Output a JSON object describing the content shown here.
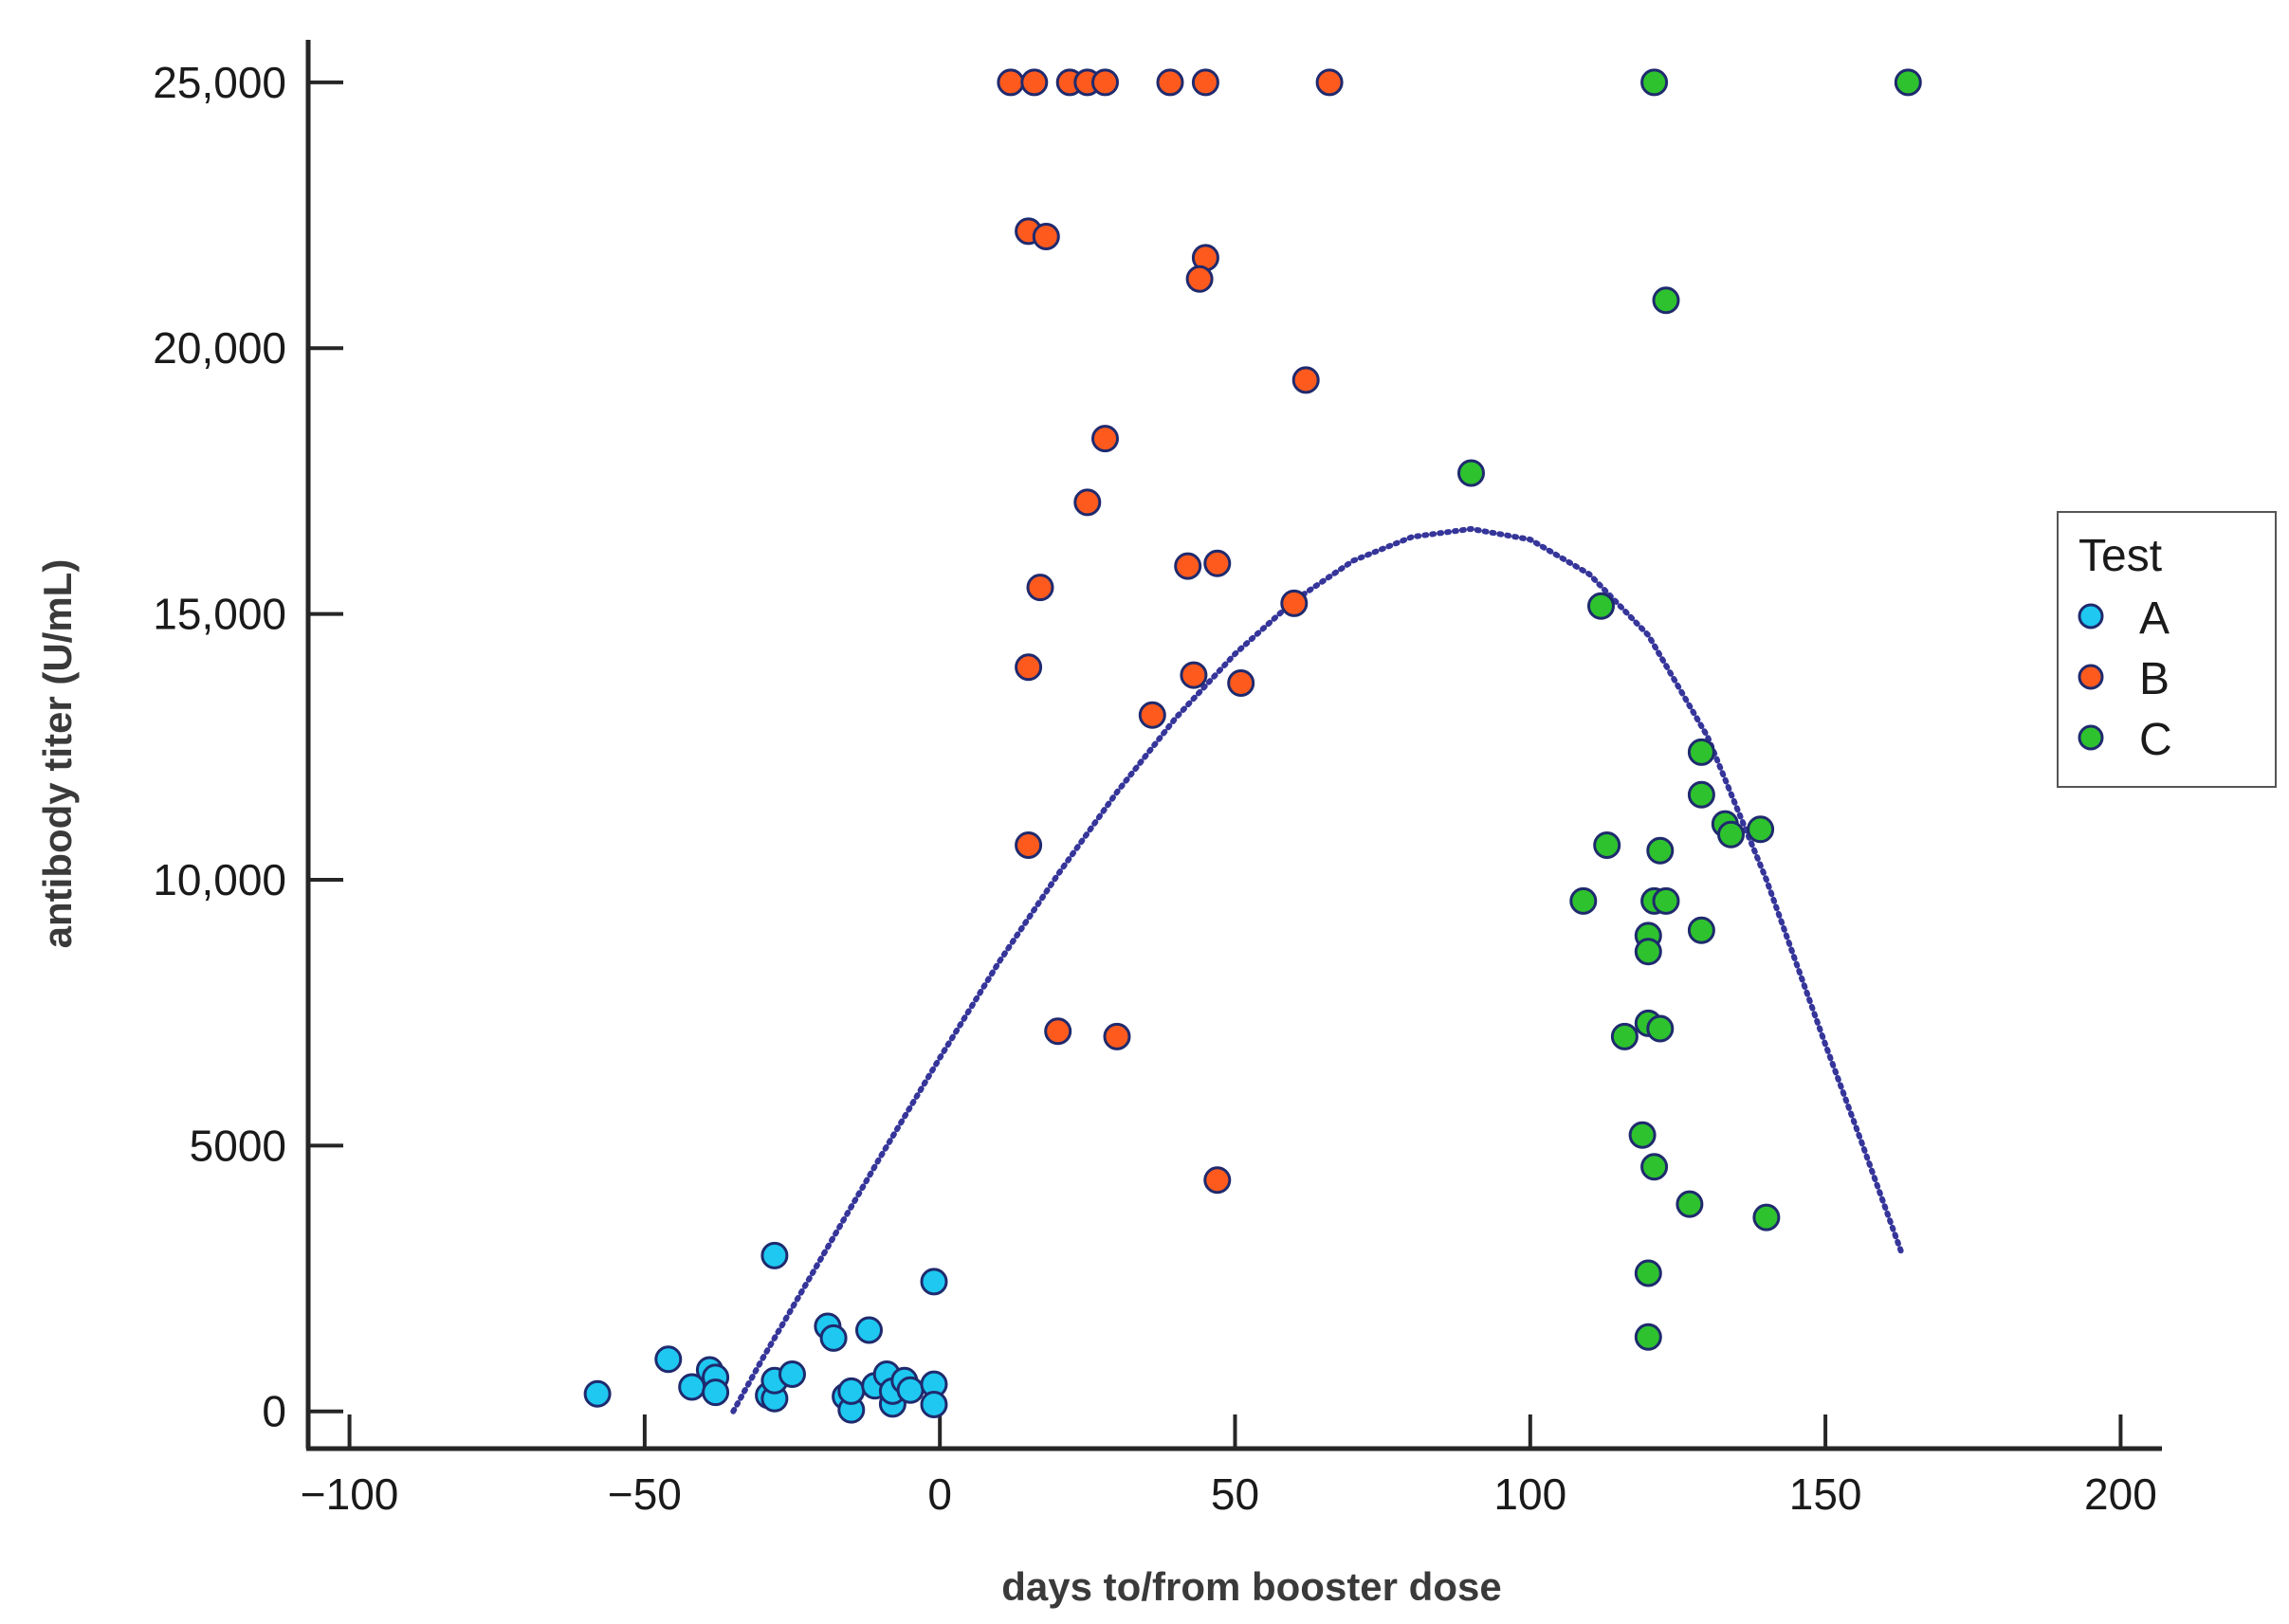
{
  "chart_data": {
    "type": "scatter",
    "title": "",
    "xlabel": "days to/from booster dose",
    "ylabel": "antibody titer (U/mL)",
    "xlim": [
      -107,
      207
    ],
    "ylim": [
      -700,
      25800
    ],
    "x_ticks": [
      {
        "value": -100,
        "label": "−100"
      },
      {
        "value": -50,
        "label": "−50"
      },
      {
        "value": 0,
        "label": "0"
      },
      {
        "value": 50,
        "label": "50"
      },
      {
        "value": 100,
        "label": "100"
      },
      {
        "value": 150,
        "label": "150"
      },
      {
        "value": 200,
        "label": "200"
      }
    ],
    "y_ticks": [
      {
        "value": 0,
        "label": "0"
      },
      {
        "value": 5000,
        "label": "5000"
      },
      {
        "value": 10000,
        "label": "10,000"
      },
      {
        "value": 15000,
        "label": "15,000"
      },
      {
        "value": 20000,
        "label": "20,000"
      },
      {
        "value": 25000,
        "label": "25,000"
      }
    ],
    "grid": false,
    "legend": {
      "title": "Test",
      "position": "right"
    },
    "series": [
      {
        "name": "A",
        "color": "#1ec8f0",
        "points": [
          [
            -58,
            330
          ],
          [
            -46,
            980
          ],
          [
            -42,
            460
          ],
          [
            -39,
            780
          ],
          [
            -38,
            640
          ],
          [
            -38,
            360
          ],
          [
            -29,
            300
          ],
          [
            -28,
            240
          ],
          [
            -28,
            2930
          ],
          [
            -28,
            580
          ],
          [
            -25,
            700
          ],
          [
            -19,
            1600
          ],
          [
            -18,
            1380
          ],
          [
            -16,
            280
          ],
          [
            -15,
            30
          ],
          [
            -15,
            380
          ],
          [
            -12,
            1530
          ],
          [
            -11,
            480
          ],
          [
            -9,
            700
          ],
          [
            -8,
            140
          ],
          [
            -8,
            380
          ],
          [
            -6,
            580
          ],
          [
            -5,
            400
          ],
          [
            -1,
            2440
          ],
          [
            -1,
            510
          ],
          [
            -1,
            130
          ]
        ]
      },
      {
        "name": "B",
        "color": "#ff5a1e",
        "points": [
          [
            12,
            25000
          ],
          [
            16,
            25000
          ],
          [
            22,
            25000
          ],
          [
            25,
            25000
          ],
          [
            28,
            25000
          ],
          [
            39,
            25000
          ],
          [
            45,
            25000
          ],
          [
            66,
            25000
          ],
          [
            15,
            22200
          ],
          [
            18,
            22100
          ],
          [
            45,
            21700
          ],
          [
            44,
            21300
          ],
          [
            62,
            19400
          ],
          [
            28,
            18300
          ],
          [
            25,
            17100
          ],
          [
            42,
            15900
          ],
          [
            47,
            15950
          ],
          [
            17,
            15500
          ],
          [
            60,
            15200
          ],
          [
            15,
            14000
          ],
          [
            43,
            13850
          ],
          [
            51,
            13700
          ],
          [
            36,
            13100
          ],
          [
            15,
            10650
          ],
          [
            20,
            7150
          ],
          [
            30,
            7050
          ],
          [
            47,
            4350
          ]
        ]
      },
      {
        "name": "C",
        "color": "#2ec22e",
        "points": [
          [
            121,
            25000
          ],
          [
            164,
            25000
          ],
          [
            123,
            20900
          ],
          [
            90,
            17650
          ],
          [
            112,
            15150
          ],
          [
            129,
            12400
          ],
          [
            129,
            11600
          ],
          [
            133,
            11050
          ],
          [
            134,
            10850
          ],
          [
            139,
            10950
          ],
          [
            113,
            10650
          ],
          [
            122,
            10550
          ],
          [
            109,
            9600
          ],
          [
            121,
            9600
          ],
          [
            123,
            9600
          ],
          [
            129,
            9050
          ],
          [
            120,
            8950
          ],
          [
            120,
            8650
          ],
          [
            120,
            7300
          ],
          [
            122,
            7200
          ],
          [
            116,
            7050
          ],
          [
            119,
            5200
          ],
          [
            121,
            4600
          ],
          [
            127,
            3900
          ],
          [
            140,
            3650
          ],
          [
            120,
            2600
          ],
          [
            120,
            1400
          ]
        ]
      }
    ],
    "trend_line": {
      "style": "dotted",
      "color": "#35359a",
      "points": [
        [
          -35,
          0
        ],
        [
          -30,
          1000
        ],
        [
          -20,
          2900
        ],
        [
          -10,
          4800
        ],
        [
          0,
          6650
        ],
        [
          10,
          8450
        ],
        [
          20,
          10100
        ],
        [
          30,
          11650
        ],
        [
          40,
          13050
        ],
        [
          50,
          14250
        ],
        [
          60,
          15250
        ],
        [
          70,
          16000
        ],
        [
          80,
          16450
        ],
        [
          90,
          16600
        ],
        [
          100,
          16400
        ],
        [
          110,
          15750
        ],
        [
          120,
          14600
        ],
        [
          130,
          12700
        ],
        [
          140,
          10000
        ],
        [
          150,
          6900
        ],
        [
          156,
          5100
        ],
        [
          163,
          2950
        ]
      ]
    }
  }
}
